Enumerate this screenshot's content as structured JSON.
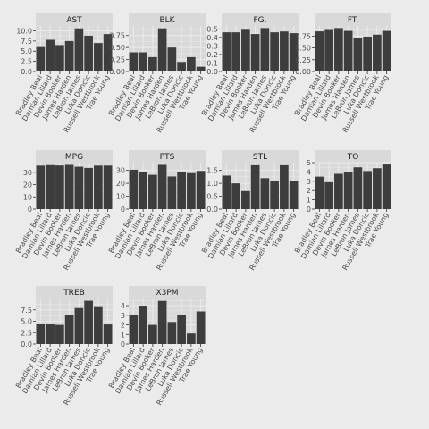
{
  "chart_data": {
    "type": "bar",
    "categories": [
      "Bradley Beal",
      "Damian Lillard",
      "Devin Booker",
      "James Harden",
      "LeBron James",
      "Luka Doncic",
      "Russell Westbrook",
      "Trae Young"
    ],
    "bar_color": "#3d3d3d",
    "panel_color": "#d9d9d9",
    "grid_color": "#ebebeb",
    "background_color": "#ebebeb",
    "panels": [
      {
        "title": "AST",
        "values": [
          6.0,
          7.8,
          6.5,
          7.5,
          10.6,
          8.8,
          7.0,
          9.2
        ],
        "ylim": [
          0,
          11.2
        ],
        "ticks": [
          0.0,
          2.5,
          5.0,
          7.5,
          10.0
        ],
        "tick_labels": [
          "0.0",
          "2.5",
          "5.0",
          "7.5",
          "10.0"
        ]
      },
      {
        "title": "BLK",
        "values": [
          0.4,
          0.4,
          0.3,
          0.9,
          0.5,
          0.2,
          0.3,
          0.1
        ],
        "ylim": [
          0,
          0.95
        ],
        "ticks": [
          0.0,
          0.25,
          0.5,
          0.75
        ],
        "tick_labels": [
          "0.00",
          "0.25",
          "0.50",
          "0.75"
        ]
      },
      {
        "title": "FG.",
        "values": [
          0.46,
          0.46,
          0.49,
          0.44,
          0.51,
          0.46,
          0.47,
          0.45
        ],
        "ylim": [
          0,
          0.535
        ],
        "ticks": [
          0.0,
          0.1,
          0.2,
          0.3,
          0.4,
          0.5
        ],
        "tick_labels": [
          "0.0",
          "0.1",
          "0.2",
          "0.3",
          "0.4",
          "0.5"
        ]
      },
      {
        "title": "FT.",
        "values": [
          0.85,
          0.88,
          0.92,
          0.86,
          0.71,
          0.74,
          0.78,
          0.86
        ],
        "ylim": [
          0,
          0.965
        ],
        "ticks": [
          0.0,
          0.25,
          0.5,
          0.75
        ],
        "tick_labels": [
          "0.00",
          "0.25",
          "0.50",
          "0.75"
        ]
      },
      {
        "title": "MPG",
        "values": [
          35.5,
          35.9,
          35.6,
          36.1,
          34.6,
          33.6,
          35.5,
          35.5
        ],
        "ylim": [
          0,
          37.9
        ],
        "ticks": [
          0,
          10,
          20,
          30
        ],
        "tick_labels": [
          "0",
          "10",
          "20",
          "30"
        ]
      },
      {
        "title": "PTS",
        "values": [
          30.5,
          28.8,
          26.6,
          34.3,
          25.3,
          28.8,
          27.9,
          29.6
        ],
        "ylim": [
          0,
          36.0
        ],
        "ticks": [
          0,
          10,
          20,
          30
        ],
        "tick_labels": [
          "0",
          "10",
          "20",
          "30"
        ]
      },
      {
        "title": "STL",
        "values": [
          1.3,
          1.0,
          0.7,
          1.7,
          1.2,
          1.1,
          1.7,
          1.1
        ],
        "ylim": [
          0,
          1.8
        ],
        "ticks": [
          0.0,
          0.5,
          1.0,
          1.5
        ],
        "tick_labels": [
          "0.0",
          "0.5",
          "1.0",
          "1.5"
        ]
      },
      {
        "title": "TO",
        "values": [
          3.5,
          2.9,
          3.8,
          4.0,
          4.5,
          4.1,
          4.4,
          4.8
        ],
        "ylim": [
          0,
          5.0
        ],
        "ticks": [
          0,
          1,
          2,
          3,
          4,
          5
        ],
        "tick_labels": [
          "0",
          "1",
          "2",
          "3",
          "4",
          "5"
        ]
      },
      {
        "title": "TREB",
        "values": [
          4.4,
          4.4,
          4.2,
          6.4,
          7.9,
          9.5,
          8.3,
          4.3
        ],
        "ylim": [
          0,
          10.0
        ],
        "ticks": [
          0.0,
          2.5,
          5.0,
          7.5
        ],
        "tick_labels": [
          "0.0",
          "2.5",
          "5.0",
          "7.5"
        ]
      },
      {
        "title": "X3PM",
        "values": [
          3.0,
          4.0,
          2.0,
          4.5,
          2.3,
          3.0,
          1.1,
          3.4
        ],
        "ylim": [
          0,
          4.75
        ],
        "ticks": [
          0,
          1,
          2,
          3,
          4
        ],
        "tick_labels": [
          "0",
          "1",
          "2",
          "3",
          "4"
        ]
      }
    ]
  }
}
